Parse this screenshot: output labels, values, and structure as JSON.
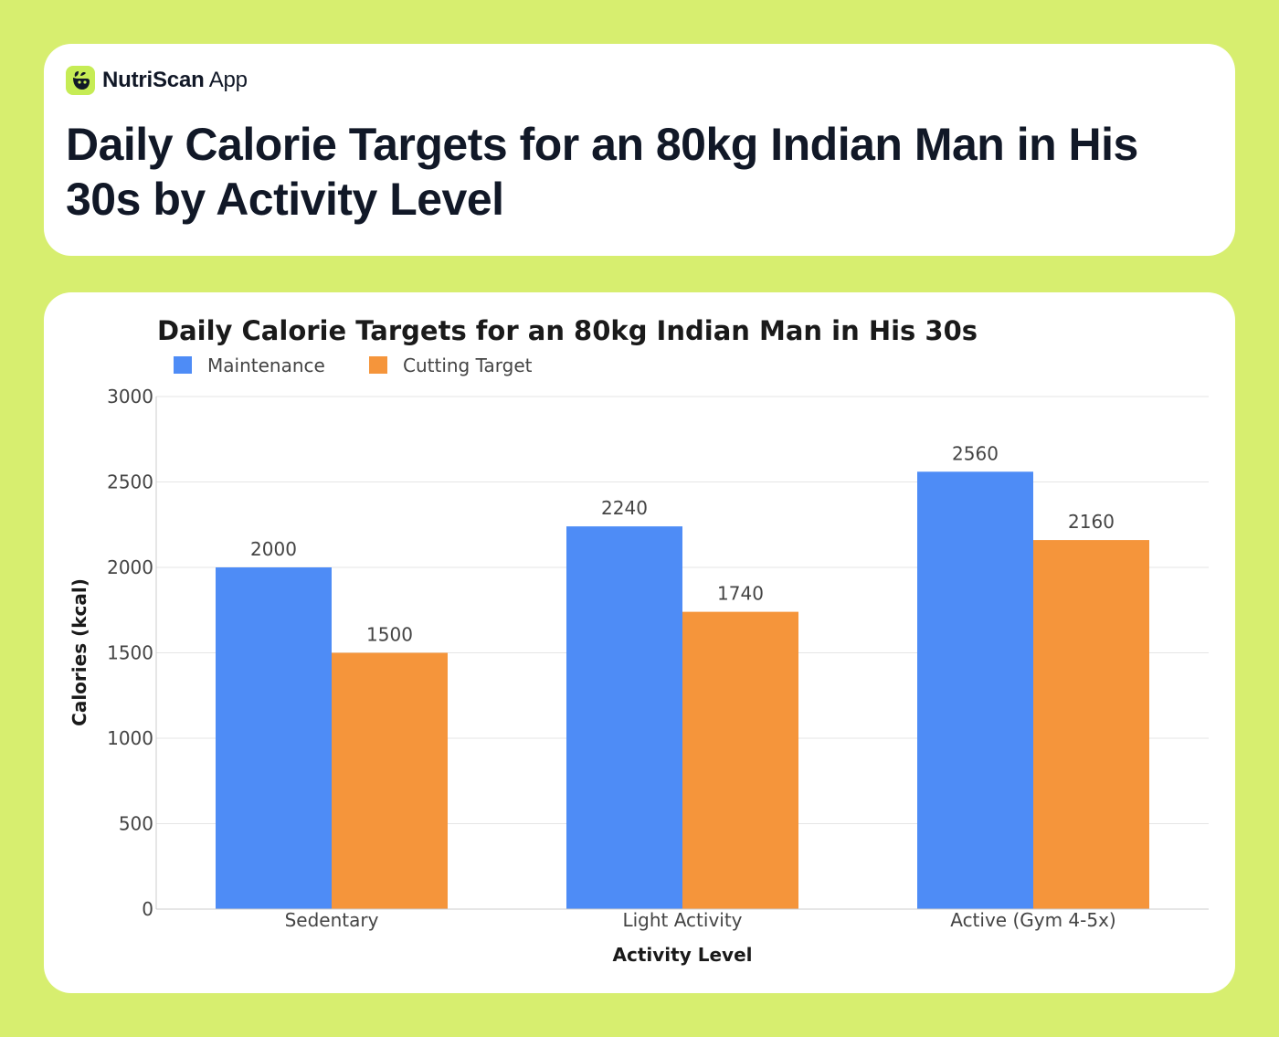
{
  "brand": {
    "name_strong": "NutriScan",
    "name_light": "App"
  },
  "page": {
    "title": "Daily Calorie Targets for an 80kg Indian Man in His 30s by Activity Level"
  },
  "colors": {
    "background": "#d7ee6f",
    "maintenance": "#4e8cf6",
    "cutting": "#f5953b",
    "logo": "#c6ec55"
  },
  "icons": {
    "logo": "leaf-face-icon"
  },
  "chart_data": {
    "type": "bar",
    "title": "Daily Calorie Targets for an 80kg Indian Man in His 30s",
    "xlabel": "Activity Level",
    "ylabel": "Calories (kcal)",
    "categories": [
      "Sedentary",
      "Light Activity",
      "Active (Gym 4-5x)"
    ],
    "series": [
      {
        "name": "Maintenance",
        "values": [
          2000,
          2240,
          2560
        ],
        "color": "#4e8cf6"
      },
      {
        "name": "Cutting Target",
        "values": [
          1500,
          1740,
          2160
        ],
        "color": "#f5953b"
      }
    ],
    "ylim": [
      0,
      3000
    ],
    "yticks": [
      0,
      500,
      1000,
      1500,
      2000,
      2500,
      3000
    ],
    "grid": true,
    "legend": "top-left"
  }
}
